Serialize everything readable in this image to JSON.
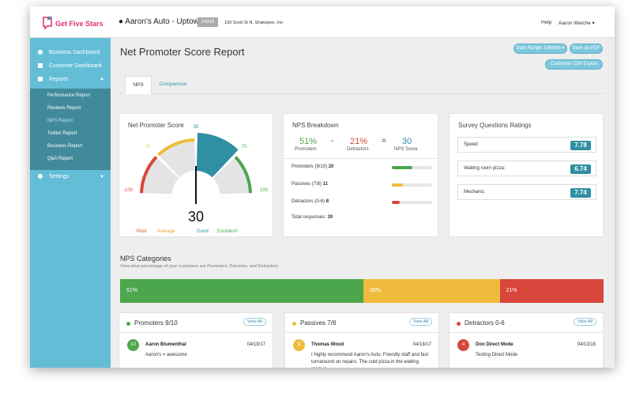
{
  "header": {
    "brand": "Get Five Stars",
    "location": "Aaron's Auto - Uptown",
    "location_id": "24318",
    "address": "100 Scott St N, Shakopee, mn",
    "help": "Help",
    "user": "Aaron Weiche"
  },
  "sidebar": {
    "items": [
      "Business Dashboard",
      "Customer Dashboard",
      "Reports"
    ],
    "reports": [
      "Performance Report",
      "Reviews Report",
      "NPS Report",
      "Twitter Report",
      "Business Report",
      "Q&A Report"
    ],
    "settings": "Settings"
  },
  "page": {
    "title": "Net Promoter Score Report",
    "buttons": [
      "Date Range: Lifetime",
      "Save as PDF",
      "Customer CSV Export"
    ],
    "tabs": [
      "NPS",
      "Comparison"
    ]
  },
  "nps_score": {
    "title": "Net Promoter Score",
    "score": 30,
    "scale_ticks": [
      -100,
      0,
      30,
      70,
      100
    ],
    "colors": [
      "#d9463b",
      "#efbb3c",
      "#2f8fa3",
      "#4ca64c"
    ],
    "legend": [
      "Poor",
      "Average",
      "Good",
      "Excellent!"
    ]
  },
  "breakdown": {
    "title": "NPS Breakdown",
    "promoters_pct": "51%",
    "promoters_label": "Promoters",
    "minus": "-",
    "detractors_pct": "21%",
    "detractors_label": "Detractors",
    "equals": "=",
    "nps_label": "NPS Score",
    "rows": [
      {
        "label": "Promoters (9/10)",
        "count": 20,
        "color": "#4ca64c"
      },
      {
        "label": "Passives (7/8)",
        "count": 11,
        "color": "#efbb3c"
      },
      {
        "label": "Detractors (0-6)",
        "count": 8,
        "color": "#d9463b"
      }
    ],
    "total_label": "Total responses:",
    "total": 39
  },
  "ratings": {
    "title": "Survey Questions Ratings",
    "items": [
      {
        "label": "Speed:",
        "value": 7.78
      },
      {
        "label": "Waiting room pizza:",
        "value": 6.74
      },
      {
        "label": "Mechanic:",
        "value": 7.74
      }
    ]
  },
  "categories": {
    "title": "NPS Categories",
    "subtitle": "View what percentage of your customers are Promoters, Passives, and Detractors",
    "segments": [
      {
        "value": 51,
        "label": "51%",
        "color": "#4ca64c"
      },
      {
        "value": 28,
        "label": "28%",
        "color": "#efbb3c"
      },
      {
        "value": 21,
        "label": "21%",
        "color": "#d9463b"
      }
    ]
  },
  "lists": [
    {
      "title": "Promoters 9/10",
      "view_all": "View All",
      "color": "#4ca64c",
      "entries": [
        {
          "score": 10,
          "name": "Aaron Blumenthal",
          "date": "04/19/17",
          "text": "Aaron's = awesome"
        }
      ]
    },
    {
      "title": "Passives 7/8",
      "view_all": "View All",
      "color": "#efbb3c",
      "entries": [
        {
          "score": 8,
          "name": "Thomas Wood",
          "date": "04/18/17",
          "text": "I highly recommend Aaron's Auto. Friendly staff and fast turnaround on repairs. The cold pizza in the waiting room is"
        }
      ]
    },
    {
      "title": "Detractors 0-6",
      "view_all": "View All",
      "color": "#d9463b",
      "entries": [
        {
          "score": 4,
          "name": "Don Direct Mode",
          "date": "04/13/18",
          "text": "Testing Direct Mode"
        }
      ]
    }
  ]
}
